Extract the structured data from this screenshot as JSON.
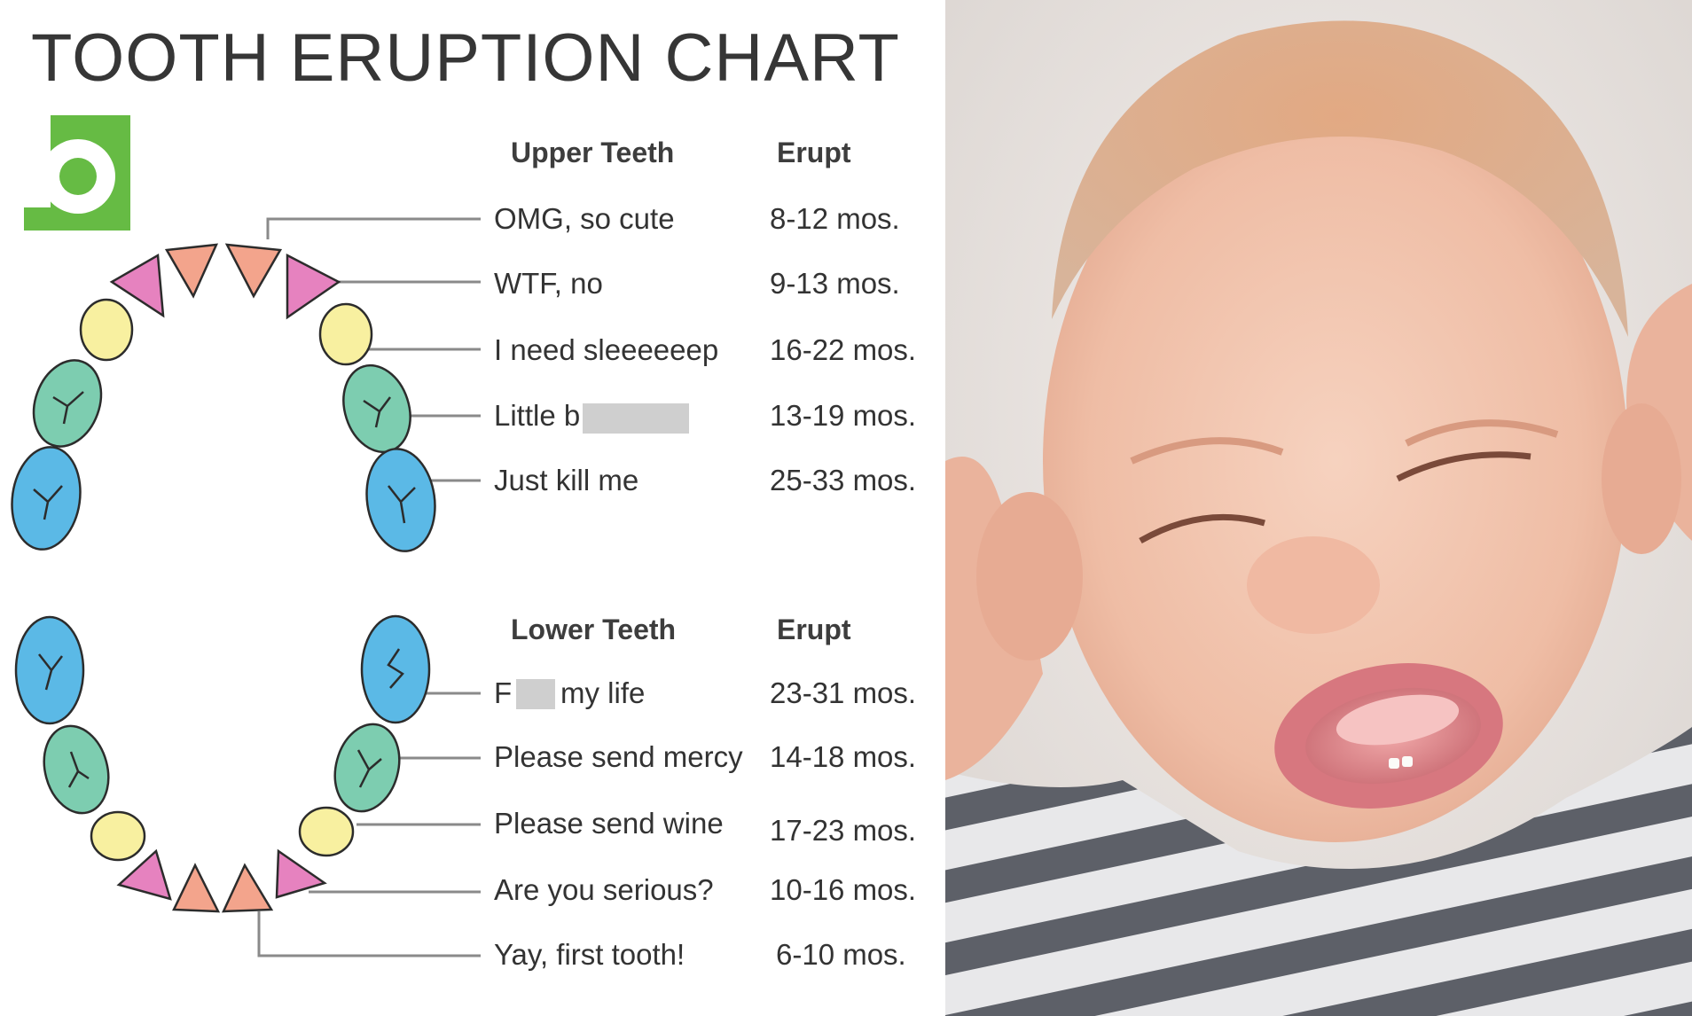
{
  "title": "TOOTH ERUPTION CHART",
  "logo_letter": "b",
  "colors": {
    "logo_green": "#66bb44",
    "central_incisor": "#f3a48c",
    "lateral_incisor": "#e682bf",
    "canine": "#f8f0a0",
    "first_molar": "#7dcdb0",
    "second_molar": "#5bb9e6",
    "leader_line": "#8a8a8a"
  },
  "upper": {
    "header_teeth": "Upper Teeth",
    "header_erupt": "Erupt",
    "rows": [
      {
        "label": "OMG, so cute",
        "erupt": "8-12 mos."
      },
      {
        "label": "WTF, no",
        "erupt": "9-13 mos."
      },
      {
        "label": "I need sleeeeeep",
        "erupt": "16-22 mos."
      },
      {
        "label": "Little b",
        "erupt": "13-19 mos."
      },
      {
        "label": "Just kill me",
        "erupt": "25-33 mos."
      }
    ]
  },
  "lower": {
    "header_teeth": "Lower Teeth",
    "header_erupt": "Erupt",
    "rows": [
      {
        "label_prefix": "F",
        "label_suffix": "my life",
        "erupt": "23-31 mos."
      },
      {
        "label": "Please send mercy",
        "erupt": "14-18 mos."
      },
      {
        "label": "Please send wine",
        "erupt": "17-23 mos."
      },
      {
        "label": "Are you serious?",
        "erupt": "10-16 mos."
      },
      {
        "label": "Yay, first tooth!",
        "erupt": "6-10 mos."
      }
    ]
  }
}
